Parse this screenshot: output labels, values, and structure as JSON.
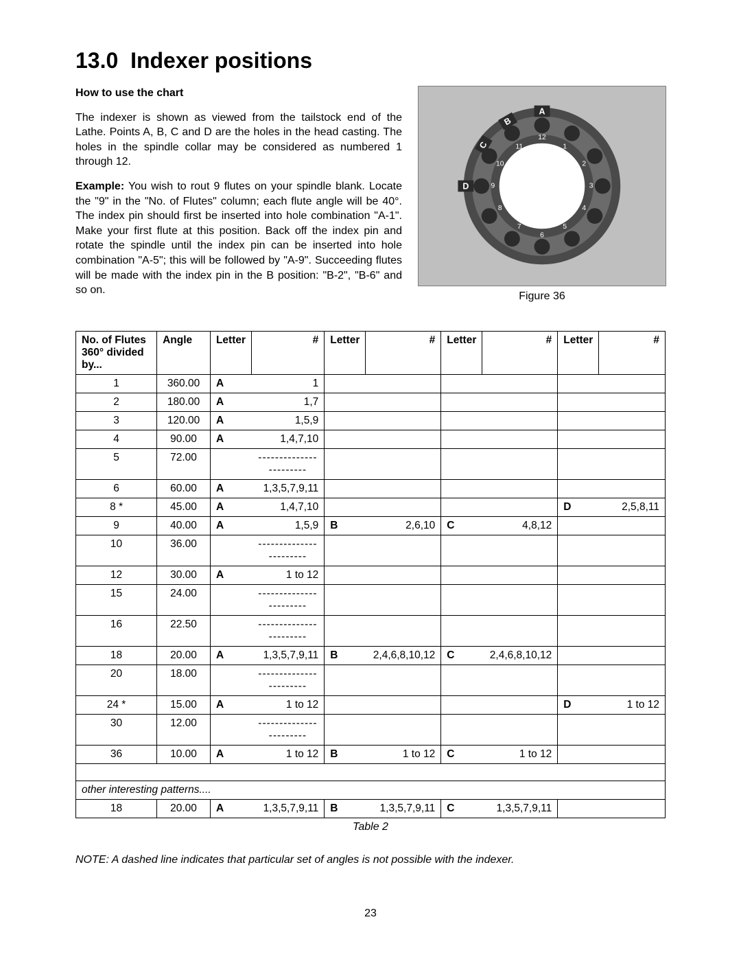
{
  "section": {
    "number": "13.0",
    "title": "Indexer positions"
  },
  "subhead": "How to use the chart",
  "paragraphs": {
    "p1": "The indexer is shown as viewed from the tailstock end of the Lathe. Points A, B, C and D are the holes in the head casting. The holes in the spindle collar may be considered as numbered 1 through 12.",
    "example_label": "Example:",
    "p2_rest": " You wish to rout 9 flutes on your spindle blank. Locate the \"9\" in the \"No. of Flutes\" column; each flute angle will be 40°. The index pin should first be inserted into hole combination \"A-1\". Make your first flute at this position. Back off the index pin and rotate the spindle until the index pin can be inserted into hole combination \"A-5\"; this will be followed by \"A-9\". Succeeding flutes will be made with the index pin in the B position: \"B-2\", \"B-6\" and so on."
  },
  "figure_caption": "Figure 36",
  "indexer_figure": {
    "background_color": "#bfbfbf",
    "ring_outer_color": "#4a4a4a",
    "ring_inner_color": "#6b6b6b",
    "hole_outer_color": "#2b2b2b",
    "center_color": "#ffffff",
    "numbers": [
      "1",
      "2",
      "3",
      "4",
      "5",
      "6",
      "7",
      "8",
      "9",
      "10",
      "11",
      "12"
    ],
    "letters": [
      "A",
      "B",
      "C",
      "D"
    ],
    "letter_box_color": "#2b2b2b"
  },
  "table": {
    "headers": {
      "flutes_line1": "No. of Flutes",
      "flutes_line2": "360° divided by...",
      "angle": "Angle",
      "letter": "Letter",
      "num": "#"
    },
    "dash": "-----------------------",
    "rows": [
      {
        "flutes": "1",
        "angle": "360.00",
        "c1l": "A",
        "c1n": "1"
      },
      {
        "flutes": "2",
        "angle": "180.00",
        "c1l": "A",
        "c1n": "1,7"
      },
      {
        "flutes": "3",
        "angle": "120.00",
        "c1l": "A",
        "c1n": "1,5,9"
      },
      {
        "flutes": "4",
        "angle": "90.00",
        "c1l": "A",
        "c1n": "1,4,7,10"
      },
      {
        "flutes": "5",
        "angle": "72.00",
        "dash1": true
      },
      {
        "flutes": "6",
        "angle": "60.00",
        "c1l": "A",
        "c1n": "1,3,5,7,9,11"
      },
      {
        "flutes": "8 *",
        "angle": "45.00",
        "c1l": "A",
        "c1n": "1,4,7,10",
        "c4l": "D",
        "c4n": "2,5,8,11"
      },
      {
        "flutes": "9",
        "angle": "40.00",
        "c1l": "A",
        "c1n": "1,5,9",
        "c2l": "B",
        "c2n": "2,6,10",
        "c3l": "C",
        "c3n": "4,8,12"
      },
      {
        "flutes": "10",
        "angle": "36.00",
        "dash1": true
      },
      {
        "flutes": "12",
        "angle": "30.00",
        "c1l": "A",
        "c1n": "1 to 12"
      },
      {
        "flutes": "15",
        "angle": "24.00",
        "dash1": true
      },
      {
        "flutes": "16",
        "angle": "22.50",
        "dash1": true
      },
      {
        "flutes": "18",
        "angle": "20.00",
        "c1l": "A",
        "c1n": "1,3,5,7,9,11",
        "c2l": "B",
        "c2n": "2,4,6,8,10,12",
        "c3l": "C",
        "c3n": "2,4,6,8,10,12"
      },
      {
        "flutes": "20",
        "angle": "18.00",
        "dash1": true
      },
      {
        "flutes": "24 *",
        "angle": "15.00",
        "c1l": "A",
        "c1n": "1 to 12",
        "c4l": "D",
        "c4n": "1 to 12"
      },
      {
        "flutes": "30",
        "angle": "12.00",
        "dash1": true
      },
      {
        "flutes": "36",
        "angle": "10.00",
        "c1l": "A",
        "c1n": "1 to 12",
        "c2l": "B",
        "c2n": "1 to 12",
        "c3l": "C",
        "c3n": "1 to 12"
      }
    ],
    "patterns_label": "other interesting patterns....",
    "pattern_rows": [
      {
        "flutes": "18",
        "angle": "20.00",
        "c1l": "A",
        "c1n": "1,3,5,7,9,11",
        "c2l": "B",
        "c2n": "1,3,5,7,9,11",
        "c3l": "C",
        "c3n": "1,3,5,7,9,11"
      }
    ],
    "caption": "Table 2"
  },
  "note": "NOTE: A dashed line indicates that particular set of angles is not possible with the indexer.",
  "page_number": "23"
}
